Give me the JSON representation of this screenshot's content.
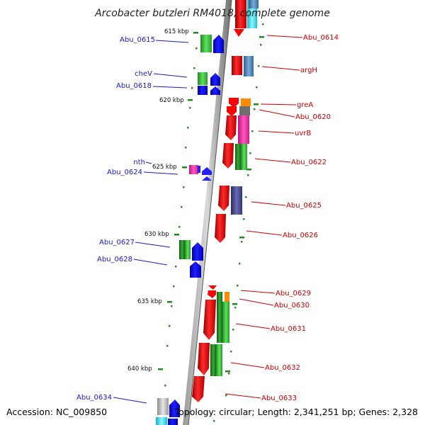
{
  "title": "Arcobacter butzleri RM4018, complete genome",
  "footer": {
    "accession": "Accession: NC_009850",
    "summary": "Topology: circular; Length: 2,341,251 bp; Genes: 2,328"
  },
  "kbp_labels": [
    "615 kbp",
    "620 kbp",
    "625 kbp",
    "630 kbp",
    "635 kbp",
    "640 kbp"
  ],
  "gene_labels_right": [
    "Abu_0614",
    "argH",
    "greA",
    "Abu_0620",
    "uvrB",
    "Abu_0622",
    "Abu_0625",
    "Abu_0626",
    "Abu_0629",
    "Abu_0630",
    "Abu_0631",
    "Abu_0632",
    "Abu_0633"
  ],
  "gene_labels_left": [
    "Abu_0615",
    "cheV",
    "Abu_0618",
    "nth",
    "Abu_0624",
    "Abu_0627",
    "Abu_0628",
    "Abu_0634"
  ],
  "colors": {
    "forward_strand": "#ff0000",
    "reverse_strand": "#0000ff",
    "label_forward": "#cc0000",
    "label_reverse": "#1a1acc",
    "backbone": "#888888",
    "tick": "#1f8a1f"
  }
}
